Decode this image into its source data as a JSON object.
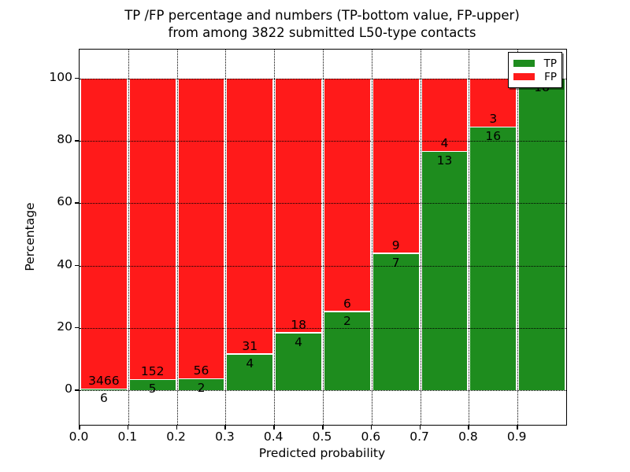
{
  "title": {
    "line1": "TP /FP percentage and numbers (TP-bottom value, FP-upper)",
    "line2": "from among 3822 submitted L50-type contacts"
  },
  "axes": {
    "xlabel": "Predicted probability",
    "ylabel": "Percentage",
    "xtick_labels": [
      "0.0",
      "0.1",
      "0.2",
      "0.3",
      "0.4",
      "0.5",
      "0.6",
      "0.7",
      "0.8",
      "0.9"
    ],
    "ytick_values": [
      0,
      20,
      40,
      60,
      80,
      100
    ],
    "xlim": [
      0.0,
      1.0
    ],
    "ylim": [
      -11.1,
      109.3
    ]
  },
  "legend": {
    "position": "upper right",
    "items": [
      {
        "label": "TP",
        "color": "#1e8c1e"
      },
      {
        "label": "FP",
        "color": "#ff1a1a"
      }
    ]
  },
  "colors": {
    "tp": "#1e8c1e",
    "fp": "#ff1a1a",
    "grid": "#000000",
    "background": "#ffffff",
    "text": "#000000"
  },
  "chart_data": {
    "type": "bar",
    "stacked": true,
    "normalized_to_percent": true,
    "title": "TP /FP percentage and numbers (TP-bottom value, FP-upper) from among 3822 submitted L50-type contacts",
    "xlabel": "Predicted probability",
    "ylabel": "Percentage",
    "total_contacts": 3822,
    "categories": [
      "0.0-0.1",
      "0.1-0.2",
      "0.2-0.3",
      "0.3-0.4",
      "0.4-0.5",
      "0.5-0.6",
      "0.6-0.7",
      "0.7-0.8",
      "0.8-0.9",
      "0.9-1.0"
    ],
    "bin_starts": [
      0.0,
      0.1,
      0.2,
      0.3,
      0.4,
      0.5,
      0.6,
      0.7,
      0.8,
      0.9
    ],
    "series": [
      {
        "name": "TP",
        "counts": [
          6,
          5,
          2,
          4,
          4,
          2,
          7,
          13,
          16,
          18
        ],
        "percent": [
          0.17,
          3.18,
          3.45,
          11.43,
          18.18,
          25.0,
          43.75,
          76.47,
          84.21,
          100.0
        ]
      },
      {
        "name": "FP",
        "counts": [
          3466,
          152,
          56,
          31,
          18,
          6,
          9,
          4,
          3,
          0
        ],
        "percent": [
          99.83,
          96.82,
          96.55,
          88.57,
          81.82,
          75.0,
          56.25,
          23.53,
          15.79,
          0.0
        ]
      }
    ],
    "yticks": [
      0,
      20,
      40,
      60,
      80,
      100
    ],
    "grid": "dotted",
    "legend_position": "upper right"
  }
}
